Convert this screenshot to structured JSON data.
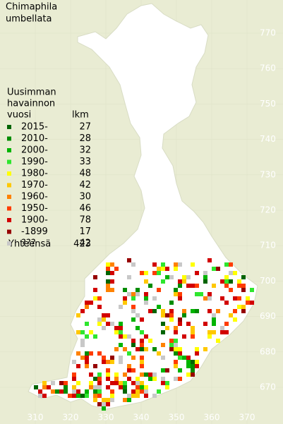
{
  "map": {
    "title_lines": [
      "Chimaphila",
      "umbellata"
    ],
    "legend": {
      "heading_lines": [
        "Uusimman",
        "havainnon",
        "vuosi"
      ],
      "count_header": "lkm",
      "items": [
        {
          "label": "2015-",
          "count": 27,
          "color": "#006400"
        },
        {
          "label": "2010-",
          "count": 28,
          "color": "#008c00"
        },
        {
          "label": "2000-",
          "count": 32,
          "color": "#00b400"
        },
        {
          "label": "1990-",
          "count": 33,
          "color": "#2ee62e"
        },
        {
          "label": "1980-",
          "count": 48,
          "color": "#ffff00"
        },
        {
          "label": "1970-",
          "count": 42,
          "color": "#ffc800"
        },
        {
          "label": "1960-",
          "count": 30,
          "color": "#ff8200"
        },
        {
          "label": "1950-",
          "count": 46,
          "color": "#ff3c00"
        },
        {
          "label": "1900-",
          "count": 78,
          "color": "#d20000"
        },
        {
          "label": "-1899",
          "count": 17,
          "color": "#960000"
        },
        {
          "label": "???",
          "count": 42,
          "color": "#c8c8c8"
        }
      ],
      "total_label": "Yhteensä",
      "total": 423
    },
    "y_labels": [
      770,
      760,
      750,
      740,
      730,
      720,
      710,
      700,
      690,
      680,
      670
    ],
    "x_labels": [
      310,
      320,
      330,
      340,
      350,
      360,
      370
    ]
  }
}
